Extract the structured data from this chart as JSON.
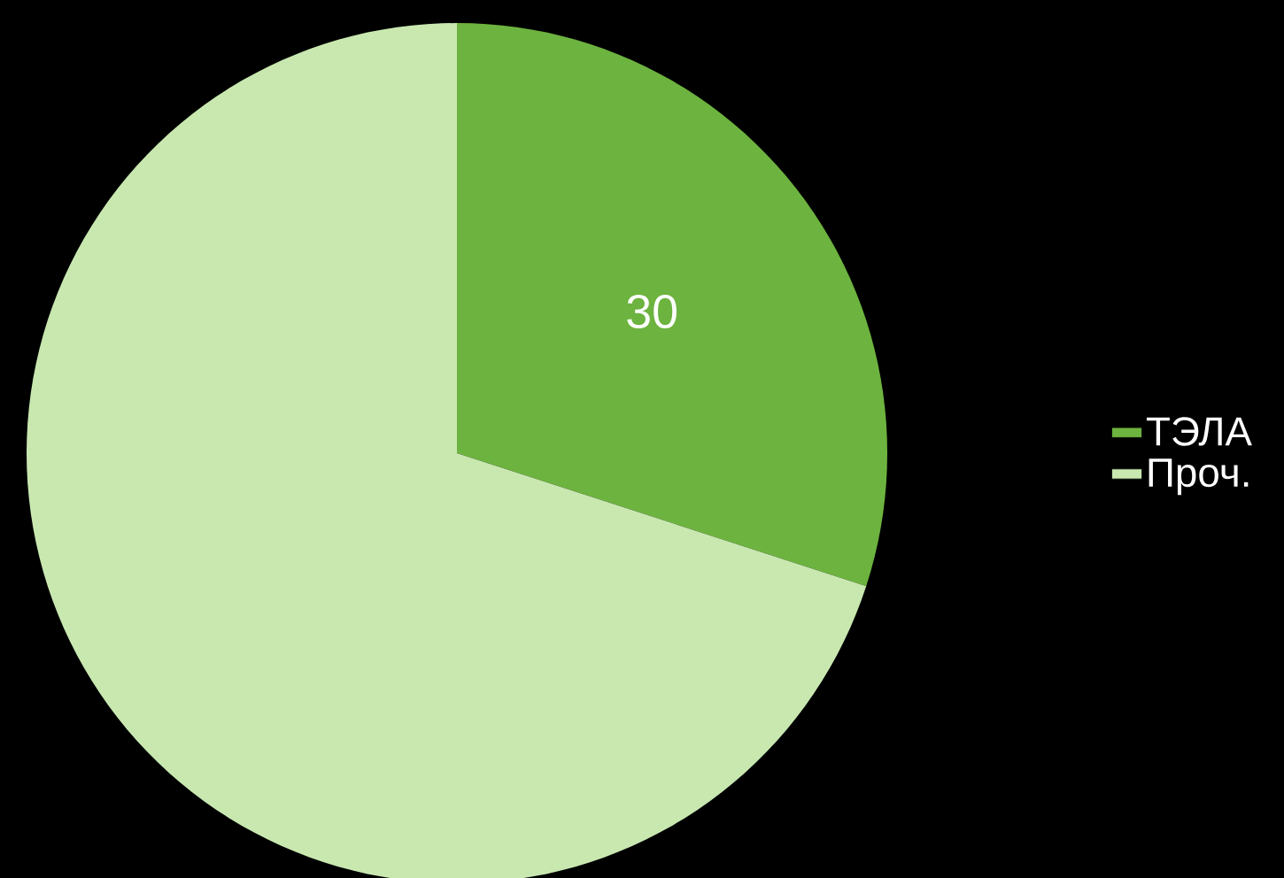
{
  "chart_data": {
    "type": "pie",
    "categories": [
      "ТЭЛА",
      "Проч."
    ],
    "values": [
      30,
      70
    ],
    "colors": [
      "#6db33f",
      "#c8e8b0"
    ],
    "value_labels": [
      "30",
      null
    ],
    "legend": "right"
  }
}
